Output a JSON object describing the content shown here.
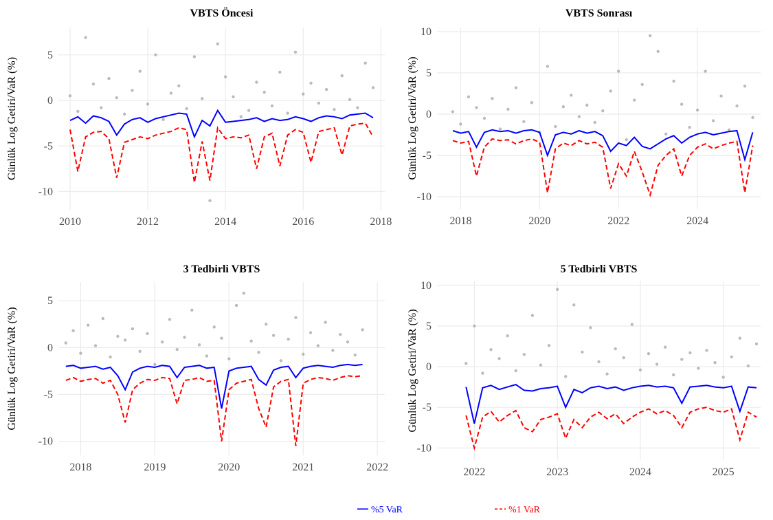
{
  "chart_data": [
    {
      "type": "line",
      "title": "VBTS Öncesi",
      "ylabel": "Günlük Log Getiri/VaR (%)",
      "grid": true,
      "xlim": [
        2009.7,
        2018.1
      ],
      "xticks": [
        2010,
        2012,
        2014,
        2016,
        2018
      ],
      "ylim": [
        -12,
        8
      ],
      "yticks": [
        -10,
        -5,
        0,
        5
      ],
      "x": [
        2010.0,
        2010.2,
        2010.4,
        2010.6,
        2010.8,
        2011.0,
        2011.2,
        2011.4,
        2011.6,
        2011.8,
        2012.0,
        2012.2,
        2012.4,
        2012.6,
        2012.8,
        2013.0,
        2013.2,
        2013.4,
        2013.6,
        2013.8,
        2014.0,
        2014.2,
        2014.4,
        2014.6,
        2014.8,
        2015.0,
        2015.2,
        2015.4,
        2015.6,
        2015.8,
        2016.0,
        2016.2,
        2016.4,
        2016.6,
        2016.8,
        2017.0,
        2017.2,
        2017.4,
        2017.6,
        2017.8
      ],
      "series": [
        {
          "kind": "scatter",
          "color": "#aaaaaa",
          "values": [
            0.5,
            -1.2,
            6.9,
            1.8,
            -0.8,
            2.4,
            0.3,
            -1.5,
            1.1,
            3.2,
            -0.4,
            5.0,
            -2.1,
            0.8,
            1.6,
            -0.9,
            4.8,
            0.2,
            -11.0,
            6.2,
            2.6,
            0.4,
            -1.8,
            -1.1,
            2.0,
            0.9,
            -0.6,
            3.1,
            -1.4,
            5.3,
            0.7,
            1.9,
            -0.3,
            1.2,
            -1.0,
            2.7,
            0.1,
            -0.8,
            4.1,
            1.4
          ]
        },
        {
          "kind": "line",
          "name": "%5 VaR",
          "color": "#0000ff",
          "dash": false,
          "values": [
            -2.2,
            -1.8,
            -2.5,
            -1.7,
            -1.9,
            -2.3,
            -3.8,
            -2.6,
            -2.1,
            -1.9,
            -2.4,
            -2.0,
            -1.8,
            -1.6,
            -1.4,
            -1.5,
            -4.0,
            -2.2,
            -2.8,
            -1.1,
            -2.4,
            -2.3,
            -2.2,
            -2.1,
            -1.9,
            -2.3,
            -2.0,
            -2.2,
            -2.1,
            -1.8,
            -2.0,
            -2.3,
            -1.9,
            -1.7,
            -1.8,
            -2.0,
            -1.6,
            -1.5,
            -1.4,
            -1.9
          ]
        },
        {
          "kind": "line",
          "name": "%1 VaR",
          "color": "#ff0000",
          "dash": true,
          "values": [
            -3.2,
            -7.8,
            -4.0,
            -3.5,
            -3.4,
            -4.2,
            -8.5,
            -4.6,
            -4.3,
            -4.0,
            -4.2,
            -3.8,
            -3.6,
            -3.4,
            -3.0,
            -3.2,
            -9.0,
            -4.5,
            -8.8,
            -3.0,
            -4.2,
            -4.0,
            -4.1,
            -3.8,
            -7.5,
            -4.0,
            -3.6,
            -7.2,
            -3.8,
            -3.2,
            -3.5,
            -6.8,
            -3.4,
            -3.2,
            -3.0,
            -6.0,
            -2.8,
            -2.6,
            -2.5,
            -4.0
          ]
        }
      ]
    },
    {
      "type": "line",
      "title": "VBTS Sonrası",
      "ylabel": "Günlük Log Getiri/VaR (%)",
      "grid": true,
      "xlim": [
        2017.4,
        2025.6
      ],
      "xticks": [
        2018,
        2020,
        2022,
        2024
      ],
      "ylim": [
        -11.5,
        10.5
      ],
      "yticks": [
        -10,
        -5,
        0,
        5,
        10
      ],
      "x": [
        2017.8,
        2018.0,
        2018.2,
        2018.4,
        2018.6,
        2018.8,
        2019.0,
        2019.2,
        2019.4,
        2019.6,
        2019.8,
        2020.0,
        2020.2,
        2020.4,
        2020.6,
        2020.8,
        2021.0,
        2021.2,
        2021.4,
        2021.6,
        2021.8,
        2022.0,
        2022.2,
        2022.4,
        2022.6,
        2022.8,
        2023.0,
        2023.2,
        2023.4,
        2023.6,
        2023.8,
        2024.0,
        2024.2,
        2024.4,
        2024.6,
        2024.8,
        2025.0,
        2025.2,
        2025.4
      ],
      "series": [
        {
          "kind": "scatter",
          "color": "#aaaaaa",
          "values": [
            0.3,
            -1.2,
            2.1,
            0.8,
            -0.5,
            1.9,
            -1.8,
            0.6,
            3.2,
            -0.9,
            1.4,
            -2.2,
            5.8,
            -1.5,
            0.9,
            2.3,
            -0.3,
            1.1,
            -1.0,
            0.4,
            2.8,
            5.2,
            -3.1,
            1.7,
            3.6,
            9.5,
            7.6,
            -2.4,
            4.0,
            1.2,
            -1.6,
            0.5,
            5.2,
            -0.8,
            2.2,
            -1.9,
            1.0,
            3.4,
            -0.4
          ]
        },
        {
          "kind": "line",
          "name": "%5 VaR",
          "color": "#0000ff",
          "dash": false,
          "values": [
            -2.0,
            -2.3,
            -2.1,
            -4.0,
            -2.2,
            -1.9,
            -2.1,
            -2.0,
            -2.3,
            -2.0,
            -1.9,
            -2.2,
            -5.0,
            -2.5,
            -2.2,
            -2.4,
            -2.0,
            -2.3,
            -2.1,
            -2.6,
            -4.5,
            -3.5,
            -3.8,
            -2.8,
            -3.9,
            -4.2,
            -3.6,
            -3.0,
            -2.6,
            -3.5,
            -2.8,
            -2.4,
            -2.2,
            -2.5,
            -2.3,
            -2.1,
            -2.0,
            -5.5,
            -2.2
          ]
        },
        {
          "kind": "line",
          "name": "%1 VaR",
          "color": "#ff0000",
          "dash": true,
          "values": [
            -3.2,
            -3.5,
            -3.3,
            -7.5,
            -4.0,
            -3.0,
            -3.2,
            -3.1,
            -3.6,
            -3.2,
            -3.0,
            -3.4,
            -9.5,
            -4.2,
            -3.5,
            -3.8,
            -3.2,
            -3.6,
            -3.4,
            -4.0,
            -9.0,
            -6.0,
            -7.5,
            -4.5,
            -7.0,
            -9.8,
            -6.2,
            -5.0,
            -4.2,
            -7.5,
            -5.0,
            -4.0,
            -3.6,
            -4.2,
            -3.8,
            -3.5,
            -3.3,
            -9.5,
            -3.8
          ]
        }
      ]
    },
    {
      "type": "line",
      "title": "3 Tedbirli VBTS",
      "ylabel": "Günlük Log Getiri/VaR (%)",
      "grid": true,
      "xlim": [
        2017.7,
        2022.1
      ],
      "xticks": [
        2018,
        2019,
        2020,
        2021,
        2022
      ],
      "ylim": [
        -11.5,
        7
      ],
      "yticks": [
        -10,
        -5,
        0,
        5
      ],
      "x": [
        2017.8,
        2017.9,
        2018.0,
        2018.1,
        2018.2,
        2018.3,
        2018.4,
        2018.5,
        2018.6,
        2018.7,
        2018.8,
        2018.9,
        2019.0,
        2019.1,
        2019.2,
        2019.3,
        2019.4,
        2019.5,
        2019.6,
        2019.7,
        2019.8,
        2019.9,
        2020.0,
        2020.1,
        2020.2,
        2020.3,
        2020.4,
        2020.5,
        2020.6,
        2020.7,
        2020.8,
        2020.9,
        2021.0,
        2021.1,
        2021.2,
        2021.3,
        2021.4,
        2021.5,
        2021.6,
        2021.7,
        2021.8
      ],
      "series": [
        {
          "kind": "scatter",
          "color": "#aaaaaa",
          "values": [
            0.5,
            1.8,
            -0.6,
            2.4,
            0.2,
            3.1,
            -1.0,
            1.2,
            0.8,
            2.0,
            -0.4,
            1.5,
            -1.8,
            0.6,
            3.0,
            -0.2,
            1.1,
            4.0,
            0.3,
            -0.9,
            2.2,
            1.0,
            -1.2,
            4.5,
            5.8,
            0.7,
            -0.5,
            2.5,
            1.3,
            -1.4,
            0.9,
            3.2,
            -0.7,
            1.6,
            0.2,
            2.7,
            -0.3,
            1.4,
            0.6,
            -0.8,
            1.9
          ]
        },
        {
          "kind": "line",
          "name": "%5 VaR",
          "color": "#0000ff",
          "dash": false,
          "values": [
            -2.0,
            -1.9,
            -2.2,
            -2.1,
            -2.0,
            -2.3,
            -2.1,
            -3.0,
            -4.5,
            -2.6,
            -2.2,
            -2.0,
            -2.1,
            -1.9,
            -2.0,
            -3.2,
            -2.1,
            -2.0,
            -1.9,
            -2.2,
            -2.1,
            -6.5,
            -2.5,
            -2.2,
            -2.1,
            -2.0,
            -3.4,
            -4.0,
            -2.4,
            -2.1,
            -2.0,
            -3.2,
            -2.2,
            -2.0,
            -1.9,
            -2.0,
            -2.1,
            -1.9,
            -1.8,
            -1.9,
            -1.8
          ]
        },
        {
          "kind": "line",
          "name": "%1 VaR",
          "color": "#ff0000",
          "dash": true,
          "values": [
            -3.5,
            -3.2,
            -3.6,
            -3.4,
            -3.3,
            -3.8,
            -3.5,
            -5.0,
            -8.0,
            -4.5,
            -3.8,
            -3.4,
            -3.5,
            -3.2,
            -3.3,
            -6.0,
            -3.5,
            -3.4,
            -3.2,
            -3.6,
            -3.5,
            -10.0,
            -4.5,
            -3.8,
            -3.6,
            -3.4,
            -6.5,
            -8.5,
            -4.2,
            -3.6,
            -3.4,
            -10.5,
            -3.8,
            -3.4,
            -3.2,
            -3.3,
            -3.5,
            -3.2,
            -3.0,
            -3.1,
            -3.0
          ]
        }
      ]
    },
    {
      "type": "line",
      "title": "5 Tedbirli VBTS",
      "ylabel": "Günlük Log Getiri/VaR (%)",
      "grid": true,
      "xlim": [
        2021.55,
        2025.45
      ],
      "xticks": [
        2022,
        2023,
        2024,
        2025
      ],
      "ylim": [
        -11.5,
        10.5
      ],
      "yticks": [
        -10,
        -5,
        0,
        5,
        10
      ],
      "x": [
        2021.9,
        2022.0,
        2022.1,
        2022.2,
        2022.3,
        2022.4,
        2022.5,
        2022.6,
        2022.7,
        2022.8,
        2022.9,
        2023.0,
        2023.1,
        2023.2,
        2023.3,
        2023.4,
        2023.5,
        2023.6,
        2023.7,
        2023.8,
        2023.9,
        2024.0,
        2024.1,
        2024.2,
        2024.3,
        2024.4,
        2024.5,
        2024.6,
        2024.7,
        2024.8,
        2024.9,
        2025.0,
        2025.1,
        2025.2,
        2025.3,
        2025.4
      ],
      "series": [
        {
          "kind": "scatter",
          "color": "#aaaaaa",
          "values": [
            0.4,
            5.0,
            -0.8,
            2.1,
            1.0,
            3.8,
            -0.5,
            1.5,
            6.3,
            0.2,
            2.6,
            9.5,
            -1.2,
            7.6,
            1.8,
            4.8,
            0.6,
            -0.9,
            2.2,
            1.1,
            5.2,
            -0.4,
            1.6,
            0.3,
            2.4,
            -1.0,
            0.9,
            1.7,
            -0.2,
            2.0,
            0.5,
            -1.3,
            1.2,
            3.5,
            0.1,
            2.8
          ]
        },
        {
          "kind": "line",
          "name": "%5 VaR",
          "color": "#0000ff",
          "dash": false,
          "values": [
            -2.5,
            -7.0,
            -2.6,
            -2.3,
            -2.8,
            -2.5,
            -2.2,
            -2.9,
            -3.0,
            -2.7,
            -2.6,
            -2.4,
            -5.0,
            -2.8,
            -3.2,
            -2.6,
            -2.4,
            -2.7,
            -2.5,
            -2.9,
            -2.6,
            -2.4,
            -2.3,
            -2.5,
            -2.4,
            -2.6,
            -4.5,
            -2.5,
            -2.4,
            -2.3,
            -2.5,
            -2.6,
            -2.4,
            -5.5,
            -2.5,
            -2.6
          ]
        },
        {
          "kind": "line",
          "name": "%1 VaR",
          "color": "#ff0000",
          "dash": true,
          "values": [
            -6.0,
            -10.0,
            -6.2,
            -5.5,
            -6.8,
            -6.0,
            -5.4,
            -7.5,
            -8.0,
            -6.5,
            -6.2,
            -5.8,
            -8.8,
            -6.5,
            -7.5,
            -6.2,
            -5.6,
            -6.4,
            -5.8,
            -7.0,
            -6.2,
            -5.6,
            -5.2,
            -5.8,
            -5.4,
            -6.0,
            -7.5,
            -5.6,
            -5.2,
            -5.0,
            -5.4,
            -5.6,
            -5.2,
            -9.0,
            -5.6,
            -6.2
          ]
        }
      ]
    }
  ]
}
